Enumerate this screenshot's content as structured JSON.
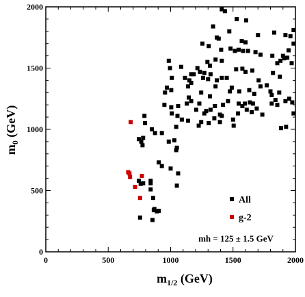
{
  "chart_data": {
    "type": "scatter",
    "title": "",
    "xlabel": "m",
    "xlabel_sub": "1/2",
    "xlabel_unit": " (GeV)",
    "ylabel": "m",
    "ylabel_sub": "0",
    "ylabel_unit": " (GeV)",
    "xlim": [
      0,
      2000
    ],
    "ylim": [
      0,
      2000
    ],
    "x_ticks": [
      0,
      500,
      1000,
      1500,
      2000
    ],
    "y_ticks": [
      0,
      500,
      1000,
      1500,
      2000
    ],
    "x_tick_labels": [
      "0",
      "500",
      "1000",
      "1500",
      "2000"
    ],
    "y_tick_labels": [
      "0",
      "500",
      "1000",
      "1500",
      "2000"
    ],
    "grid": false,
    "legend_position": "bottom-right",
    "annotation": "mh = 125 ± 1.5 GeV",
    "series": [
      {
        "name": "All",
        "color": "#000000",
        "marker": "square",
        "points": [
          [
            1410,
            1980
          ],
          [
            1435,
            1965
          ],
          [
            1530,
            1900
          ],
          [
            1605,
            1890
          ],
          [
            1700,
            1770
          ],
          [
            1830,
            1790
          ],
          [
            1920,
            1770
          ],
          [
            1985,
            1810
          ],
          [
            1340,
            1840
          ],
          [
            1470,
            1800
          ],
          [
            1370,
            1750
          ],
          [
            1385,
            1740
          ],
          [
            1570,
            1720
          ],
          [
            1600,
            1710
          ],
          [
            1620,
            1640
          ],
          [
            1680,
            1630
          ],
          [
            1255,
            1700
          ],
          [
            1305,
            1680
          ],
          [
            1405,
            1650
          ],
          [
            1410,
            1560
          ],
          [
            1480,
            1660
          ],
          [
            1515,
            1640
          ],
          [
            1545,
            1650
          ],
          [
            1580,
            1640
          ],
          [
            1720,
            1610
          ],
          [
            1815,
            1600
          ],
          [
            1900,
            1600
          ],
          [
            1935,
            1585
          ],
          [
            1945,
            1645
          ],
          [
            1960,
            1760
          ],
          [
            1985,
            1700
          ],
          [
            1970,
            1540
          ],
          [
            1295,
            1550
          ],
          [
            1315,
            1520
          ],
          [
            1360,
            1570
          ],
          [
            1410,
            1420
          ],
          [
            1450,
            1420
          ],
          [
            1525,
            1490
          ],
          [
            1575,
            1495
          ],
          [
            1600,
            1470
          ],
          [
            1655,
            1480
          ],
          [
            1705,
            1400
          ],
          [
            1720,
            1350
          ],
          [
            1820,
            1460
          ],
          [
            1855,
            1540
          ],
          [
            1880,
            1560
          ],
          [
            1910,
            1580
          ],
          [
            1875,
            1430
          ],
          [
            985,
            1560
          ],
          [
            995,
            1500
          ],
          [
            1085,
            1510
          ],
          [
            1165,
            1450
          ],
          [
            1185,
            1450
          ],
          [
            1215,
            1500
          ],
          [
            1235,
            1470
          ],
          [
            1270,
            1460
          ],
          [
            1370,
            1400
          ],
          [
            1010,
            1420
          ],
          [
            1115,
            1420
          ],
          [
            1150,
            1400
          ],
          [
            1260,
            1420
          ],
          [
            1300,
            1410
          ],
          [
            1320,
            1450
          ],
          [
            955,
            1300
          ],
          [
            970,
            1340
          ],
          [
            1005,
            1320
          ],
          [
            1140,
            1350
          ],
          [
            1165,
            1380
          ],
          [
            1245,
            1300
          ],
          [
            1315,
            1270
          ],
          [
            1360,
            1350
          ],
          [
            1475,
            1310
          ],
          [
            1490,
            1340
          ],
          [
            1550,
            1310
          ],
          [
            1630,
            1320
          ],
          [
            1670,
            1290
          ],
          [
            1770,
            1360
          ],
          [
            1800,
            1310
          ],
          [
            1810,
            1280
          ],
          [
            1840,
            1240
          ],
          [
            1870,
            1300
          ],
          [
            1920,
            1230
          ],
          [
            1950,
            1250
          ],
          [
            1975,
            1220
          ],
          [
            1985,
            1130
          ],
          [
            950,
            1200
          ],
          [
            1005,
            1180
          ],
          [
            1010,
            1130
          ],
          [
            1060,
            1190
          ],
          [
            1130,
            1210
          ],
          [
            1145,
            1260
          ],
          [
            1165,
            1230
          ],
          [
            1205,
            1160
          ],
          [
            1230,
            1210
          ],
          [
            1270,
            1130
          ],
          [
            1285,
            1150
          ],
          [
            1320,
            1160
          ],
          [
            1355,
            1190
          ],
          [
            1395,
            1120
          ],
          [
            1410,
            1110
          ],
          [
            1420,
            1200
          ],
          [
            1460,
            1230
          ],
          [
            1545,
            1210
          ],
          [
            1575,
            1190
          ],
          [
            1595,
            1210
          ],
          [
            1610,
            1160
          ],
          [
            1635,
            1220
          ],
          [
            1650,
            1140
          ],
          [
            1660,
            1210
          ],
          [
            1690,
            1170
          ],
          [
            1735,
            1120
          ],
          [
            1810,
            1210
          ],
          [
            1855,
            1200
          ],
          [
            1925,
            1020
          ],
          [
            1885,
            1010
          ],
          [
            790,
            1110
          ],
          [
            795,
            1050
          ],
          [
            850,
            1000
          ],
          [
            875,
            970
          ],
          [
            930,
            970
          ],
          [
            985,
            900
          ],
          [
            1045,
            1020
          ],
          [
            1055,
            1110
          ],
          [
            1090,
            1080
          ],
          [
            1140,
            1070
          ],
          [
            1225,
            1030
          ],
          [
            1245,
            1060
          ],
          [
            1305,
            1050
          ],
          [
            1350,
            1090
          ],
          [
            1395,
            1060
          ],
          [
            1500,
            1080
          ],
          [
            1505,
            1030
          ],
          [
            1540,
            1130
          ],
          [
            745,
            920
          ],
          [
            765,
            900
          ],
          [
            780,
            930
          ],
          [
            775,
            870
          ],
          [
            1030,
            910
          ],
          [
            1045,
            830
          ],
          [
            1050,
            850
          ],
          [
            905,
            730
          ],
          [
            930,
            700
          ],
          [
            1000,
            680
          ],
          [
            1060,
            640
          ],
          [
            1050,
            540
          ],
          [
            745,
            580
          ],
          [
            780,
            560
          ],
          [
            760,
            555
          ],
          [
            840,
            560
          ],
          [
            840,
            510
          ],
          [
            860,
            440
          ],
          [
            870,
            350
          ],
          [
            890,
            330
          ],
          [
            905,
            335
          ],
          [
            755,
            280
          ],
          [
            855,
            260
          ],
          [
            840,
            580
          ],
          [
            865,
            340
          ]
        ]
      },
      {
        "name": "g-2",
        "color": "#cc0000",
        "marker": "square",
        "points": [
          [
            680,
            1060
          ],
          [
            670,
            640
          ],
          [
            660,
            650
          ],
          [
            675,
            610
          ],
          [
            770,
            620
          ],
          [
            715,
            530
          ],
          [
            755,
            440
          ]
        ]
      }
    ]
  }
}
